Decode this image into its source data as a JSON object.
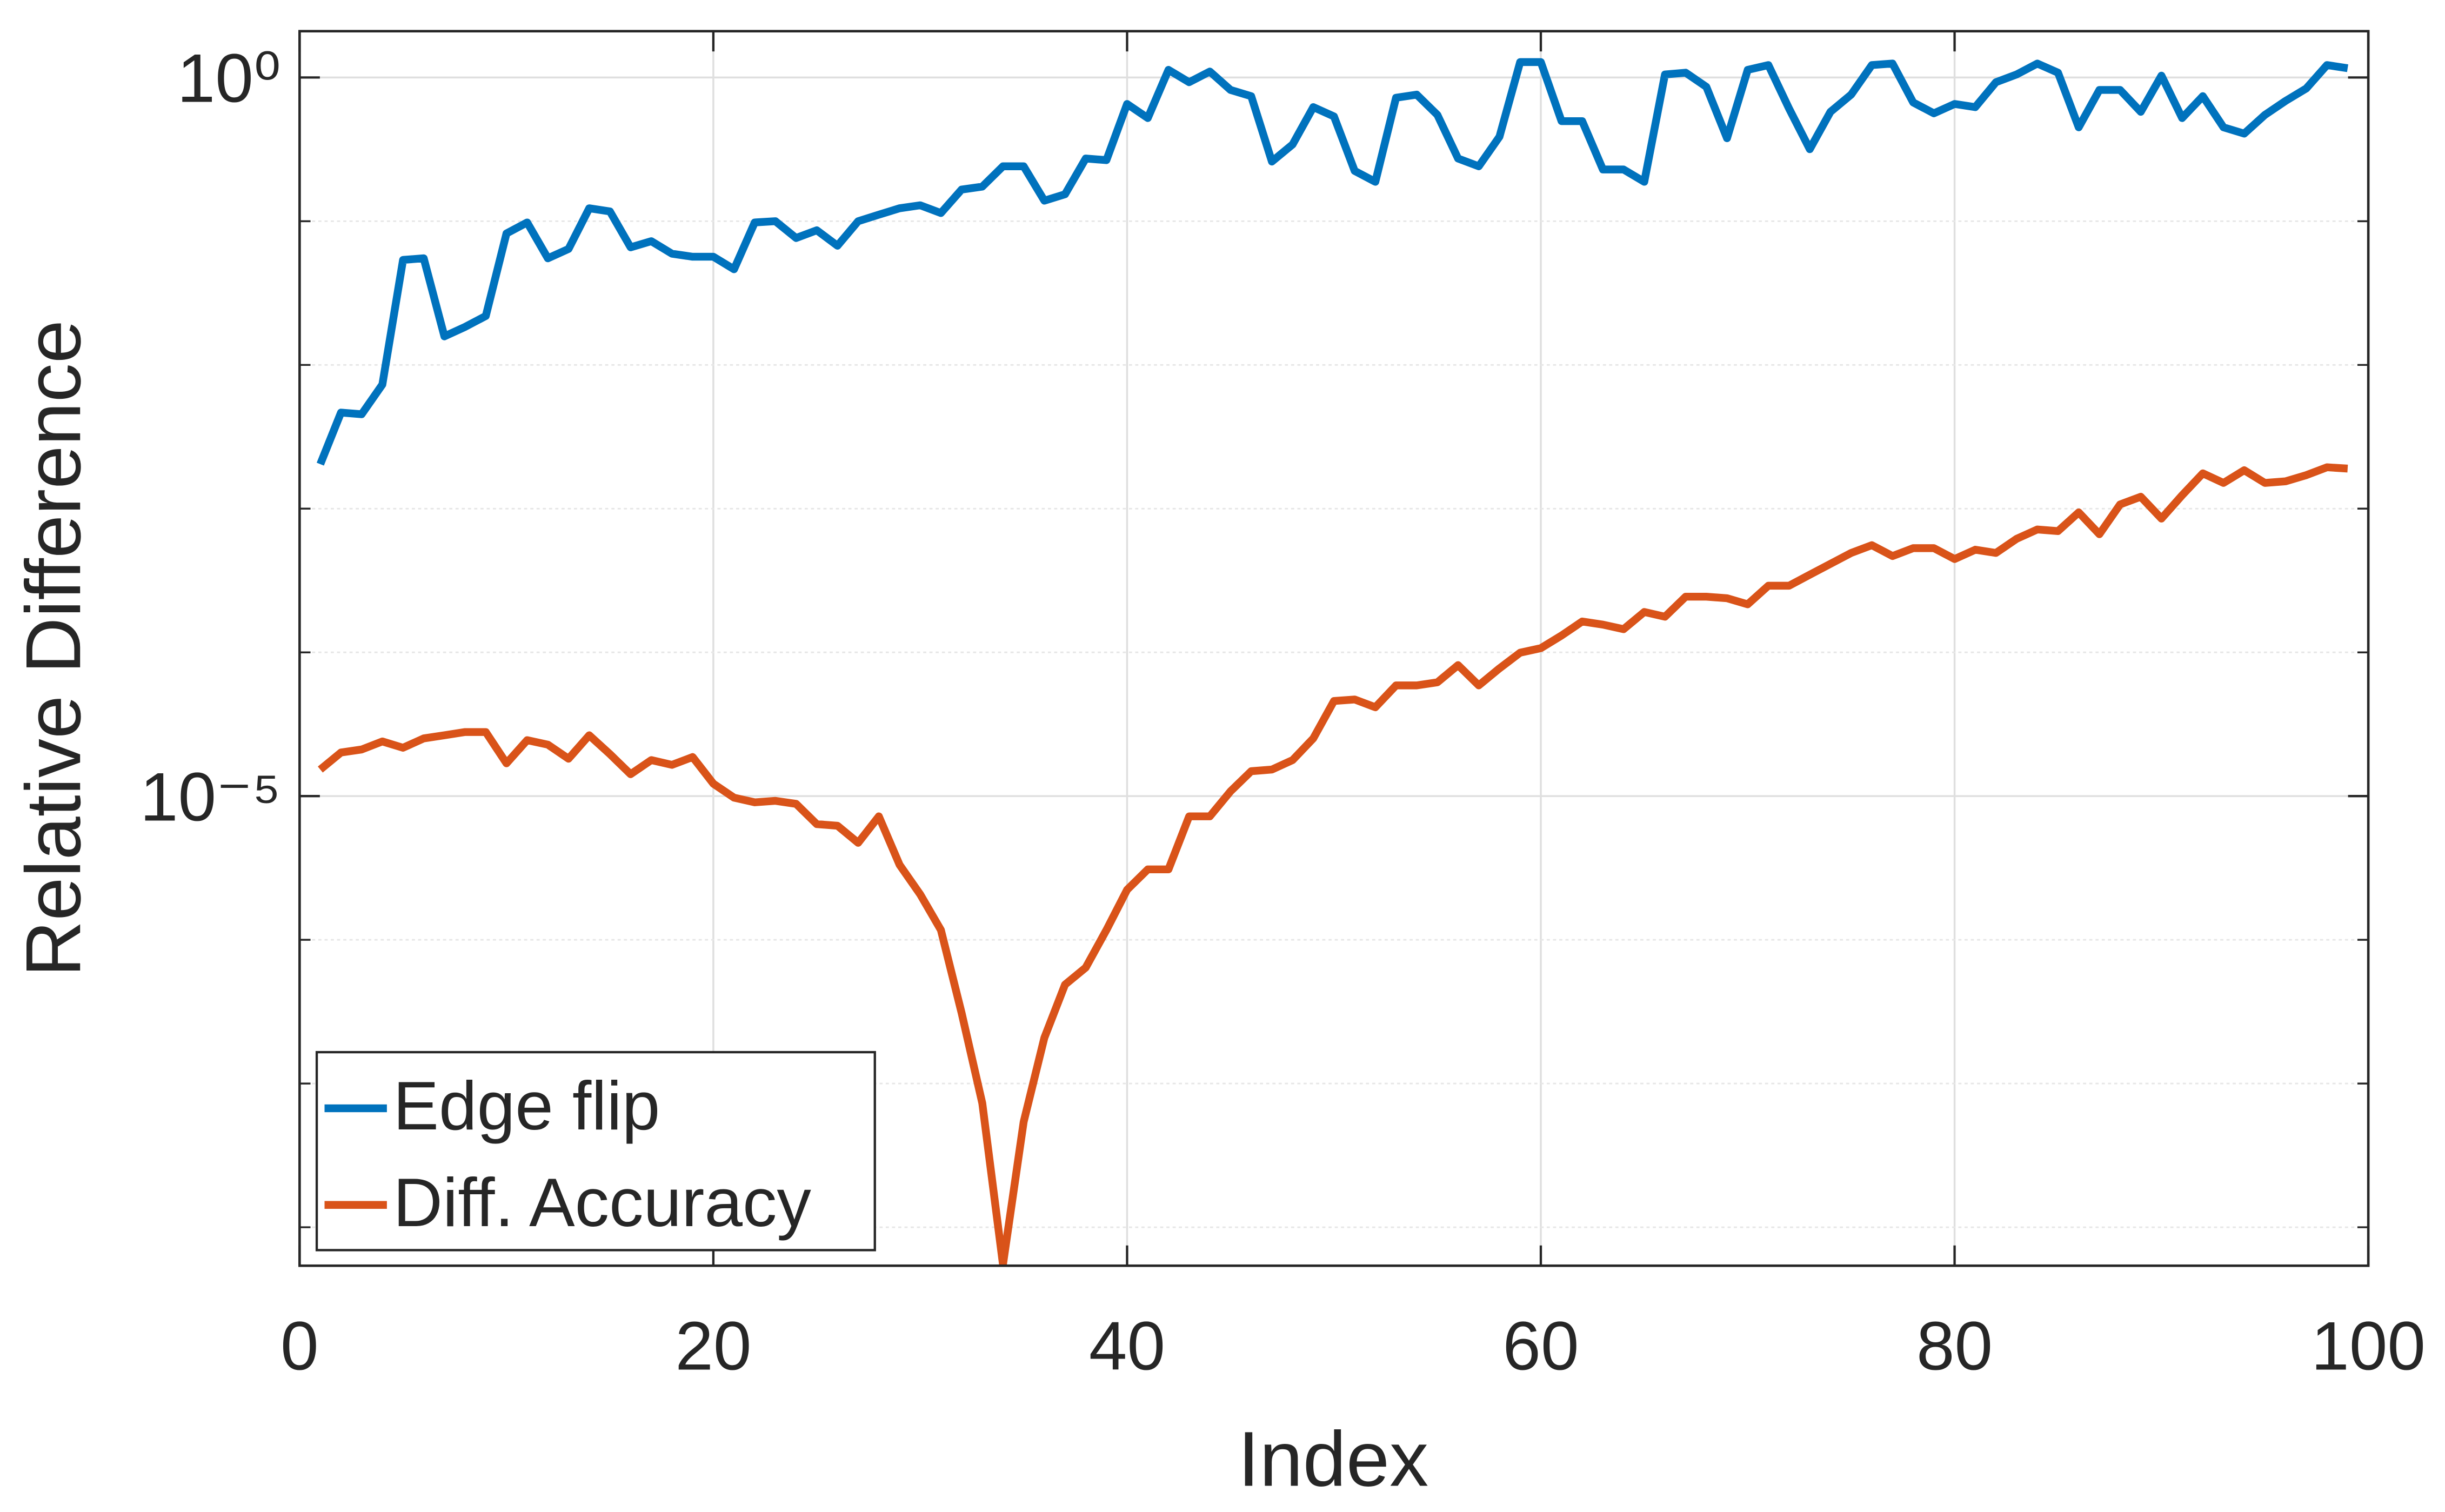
{
  "chart_data": {
    "type": "line",
    "xlabel": "Index",
    "ylabel": "Relative Difference",
    "yscale": "log",
    "grid": true,
    "legend": "lower left",
    "xlim": [
      0,
      100
    ],
    "xticks": [
      0,
      20,
      40,
      60,
      80,
      100
    ],
    "ylim": [
      5.4e-09,
      2.1
    ],
    "yticks": [
      {
        "value": 1e-05,
        "label": "10⁻⁵"
      },
      {
        "value": 1,
        "label": "10⁰"
      }
    ],
    "yminorticks": [
      1e-08,
      1e-07,
      1e-06,
      0.0001,
      0.001,
      0.01,
      0.1
    ],
    "x": [
      1,
      2,
      3,
      4,
      5,
      6,
      7,
      8,
      9,
      10,
      11,
      12,
      13,
      14,
      15,
      16,
      17,
      18,
      19,
      20,
      21,
      22,
      23,
      24,
      25,
      26,
      27,
      28,
      29,
      30,
      31,
      32,
      33,
      34,
      35,
      36,
      37,
      38,
      39,
      40,
      41,
      42,
      43,
      44,
      45,
      46,
      47,
      48,
      49,
      50,
      51,
      52,
      53,
      54,
      55,
      56,
      57,
      58,
      59,
      60,
      61,
      62,
      63,
      64,
      65,
      66,
      67,
      68,
      69,
      70,
      71,
      72,
      73,
      74,
      75,
      76,
      77,
      78,
      79,
      80,
      81,
      82,
      83,
      84,
      85,
      86,
      87,
      88,
      89,
      90,
      91,
      92,
      93,
      94,
      95,
      96,
      97,
      98,
      99
    ],
    "series": [
      {
        "name": "Edge flip",
        "color": "#0072BD",
        "values": [
          0.00204,
          0.00466,
          0.00454,
          0.0073,
          0.0538,
          0.0552,
          0.0158,
          0.0184,
          0.0219,
          0.0822,
          0.098,
          0.0552,
          0.0641,
          0.123,
          0.117,
          0.0658,
          0.0726,
          0.0594,
          0.0566,
          0.0566,
          0.0463,
          0.098,
          0.1,
          0.0764,
          0.0865,
          0.0675,
          0.1,
          0.111,
          0.123,
          0.129,
          0.114,
          0.166,
          0.174,
          0.241,
          0.241,
          0.139,
          0.154,
          0.273,
          0.266,
          0.654,
          0.522,
          1.13,
          0.927,
          1.1,
          0.819,
          0.741,
          0.26,
          0.342,
          0.622,
          0.536,
          0.224,
          0.188,
          0.723,
          0.76,
          0.549,
          0.273,
          0.241,
          0.387,
          1.28,
          1.28,
          0.497,
          0.497,
          0.229,
          0.229,
          0.188,
          1.05,
          1.08,
          0.861,
          0.378,
          1.13,
          1.22,
          0.607,
          0.317,
          0.577,
          0.76,
          1.22,
          1.25,
          0.67,
          0.563,
          0.654,
          0.622,
          0.927,
          1.05,
          1.25,
          1.08,
          0.45,
          0.819,
          0.819,
          0.577,
          1.03,
          0.522,
          0.741,
          0.45,
          0.407,
          0.549,
          0.687,
          0.839,
          1.22,
          1.16
        ]
      },
      {
        "name": "Diff. Accuracy",
        "color": "#D95319",
        "values": [
          1.53e-05,
          2.01e-05,
          2.11e-05,
          2.4e-05,
          2.17e-05,
          2.52e-05,
          2.65e-05,
          2.79e-05,
          2.79e-05,
          1.69e-05,
          2.45e-05,
          2.28e-05,
          1.82e-05,
          2.65e-05,
          1.96e-05,
          1.42e-05,
          1.78e-05,
          1.65e-05,
          1.87e-05,
          1.22e-05,
          9.75e-06,
          9.05e-06,
          9.27e-06,
          8.83e-06,
          6.38e-06,
          6.22e-06,
          4.73e-06,
          7.23e-06,
          3.33e-06,
          2.07e-06,
          1.17e-06,
          3.1e-07,
          7.3e-08,
          5.5e-09,
          5.41e-08,
          2.08e-07,
          4.88e-07,
          6.41e-07,
          1.17e-06,
          2.23e-06,
          3.09e-06,
          3.09e-06,
          7.23e-06,
          7.23e-06,
          1.08e-05,
          1.49e-05,
          1.53e-05,
          1.78e-05,
          2.52e-05,
          4.59e-05,
          4.7e-05,
          4.15e-05,
          5.89e-05,
          5.89e-05,
          6.19e-05,
          8.15e-05,
          5.89e-05,
          7.74e-05,
          9.95e-05,
          0.000107,
          0.000131,
          0.000164,
          0.000156,
          0.000145,
          0.000191,
          0.000177,
          0.000244,
          0.000244,
          0.000238,
          0.000216,
          0.000291,
          0.000291,
          0.000347,
          0.000413,
          0.000492,
          0.000557,
          0.000468,
          0.000531,
          0.000531,
          0.000446,
          0.000518,
          0.000492,
          0.000617,
          0.000716,
          0.000698,
          0.000942,
          0.000664,
          0.00107,
          0.00121,
          0.000853,
          0.00124,
          0.00176,
          0.00151,
          0.00185,
          0.00151,
          0.00155,
          0.00171,
          0.00194,
          0.0019
        ]
      }
    ]
  }
}
